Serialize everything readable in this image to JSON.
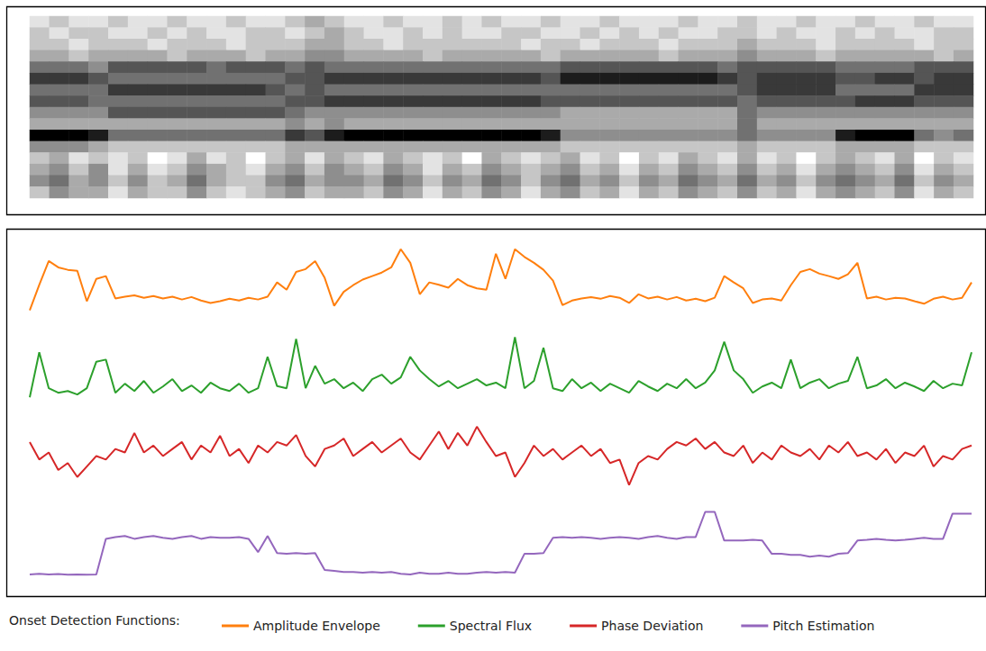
{
  "chart_data": [
    {
      "type": "heatmap",
      "color": "#000000",
      "zlim": [
        0,
        9
      ],
      "tick_labels": false,
      "cells": [
        [
          1,
          2,
          1,
          1,
          2,
          1,
          1,
          2,
          1,
          1,
          2,
          1,
          1,
          2,
          3,
          2,
          1,
          1,
          2,
          1,
          1,
          2,
          1,
          2,
          1,
          1,
          2,
          1,
          1,
          2,
          1,
          1,
          1,
          2,
          1,
          1,
          2,
          1,
          1,
          2,
          1,
          1,
          2,
          1,
          1,
          2,
          1,
          1
        ],
        [
          2,
          1,
          2,
          2,
          1,
          1,
          2,
          1,
          2,
          1,
          1,
          2,
          2,
          1,
          2,
          3,
          2,
          1,
          1,
          2,
          1,
          2,
          1,
          1,
          2,
          2,
          1,
          1,
          2,
          1,
          2,
          1,
          2,
          1,
          1,
          2,
          2,
          1,
          2,
          1,
          1,
          2,
          1,
          2,
          1,
          1,
          2,
          2
        ],
        [
          2,
          2,
          1,
          2,
          2,
          2,
          1,
          2,
          2,
          2,
          1,
          2,
          2,
          2,
          3,
          3,
          2,
          2,
          1,
          2,
          2,
          2,
          2,
          2,
          2,
          1,
          2,
          2,
          1,
          2,
          2,
          2,
          1,
          2,
          2,
          2,
          3,
          2,
          2,
          2,
          1,
          2,
          2,
          2,
          2,
          1,
          2,
          2
        ],
        [
          3,
          3,
          2,
          3,
          3,
          3,
          3,
          2,
          3,
          3,
          3,
          2,
          3,
          3,
          4,
          4,
          3,
          3,
          3,
          3,
          2,
          3,
          3,
          3,
          3,
          3,
          2,
          3,
          3,
          3,
          3,
          3,
          2,
          3,
          3,
          3,
          4,
          3,
          3,
          3,
          2,
          3,
          3,
          3,
          3,
          3,
          2,
          3
        ],
        [
          5,
          5,
          5,
          4,
          6,
          6,
          6,
          6,
          6,
          5,
          6,
          6,
          6,
          5,
          6,
          5,
          5,
          5,
          5,
          5,
          5,
          5,
          5,
          5,
          5,
          5,
          5,
          6,
          6,
          6,
          6,
          6,
          6,
          6,
          6,
          5,
          6,
          6,
          6,
          6,
          6,
          5,
          5,
          5,
          5,
          6,
          6,
          6
        ],
        [
          7,
          7,
          7,
          6,
          5,
          5,
          5,
          5,
          5,
          5,
          5,
          5,
          5,
          6,
          6,
          7,
          7,
          7,
          7,
          7,
          7,
          7,
          7,
          7,
          7,
          7,
          6,
          8,
          8,
          8,
          8,
          8,
          8,
          8,
          8,
          7,
          6,
          7,
          7,
          7,
          7,
          6,
          6,
          7,
          7,
          6,
          7,
          7
        ],
        [
          5,
          5,
          5,
          5,
          7,
          7,
          7,
          7,
          7,
          7,
          7,
          7,
          6,
          5,
          6,
          5,
          5,
          5,
          5,
          5,
          5,
          5,
          5,
          5,
          5,
          5,
          5,
          5,
          5,
          5,
          5,
          5,
          5,
          5,
          5,
          5,
          6,
          7,
          7,
          7,
          7,
          5,
          5,
          5,
          5,
          7,
          7,
          7
        ],
        [
          6,
          6,
          6,
          5,
          5,
          5,
          5,
          5,
          5,
          5,
          5,
          5,
          5,
          6,
          6,
          7,
          7,
          7,
          7,
          7,
          7,
          7,
          7,
          7,
          7,
          7,
          6,
          6,
          6,
          6,
          6,
          6,
          6,
          6,
          6,
          6,
          5,
          6,
          6,
          6,
          6,
          6,
          7,
          7,
          7,
          6,
          6,
          6
        ],
        [
          4,
          4,
          4,
          4,
          6,
          6,
          6,
          6,
          6,
          6,
          6,
          6,
          6,
          5,
          4,
          4,
          4,
          4,
          4,
          4,
          4,
          4,
          4,
          4,
          4,
          4,
          4,
          3,
          3,
          3,
          3,
          3,
          3,
          3,
          3,
          3,
          5,
          4,
          4,
          4,
          4,
          4,
          4,
          4,
          4,
          4,
          4,
          4
        ],
        [
          3,
          3,
          3,
          3,
          3,
          3,
          3,
          3,
          3,
          3,
          3,
          3,
          3,
          4,
          3,
          4,
          3,
          3,
          3,
          3,
          3,
          3,
          3,
          3,
          3,
          3,
          3,
          3,
          3,
          3,
          3,
          3,
          3,
          3,
          3,
          3,
          5,
          3,
          3,
          3,
          3,
          3,
          3,
          3,
          3,
          3,
          3,
          3
        ],
        [
          9,
          9,
          9,
          8,
          5,
          5,
          5,
          5,
          5,
          5,
          5,
          5,
          5,
          7,
          6,
          8,
          9,
          9,
          9,
          9,
          9,
          9,
          9,
          9,
          9,
          9,
          8,
          4,
          4,
          4,
          4,
          4,
          4,
          4,
          4,
          4,
          5,
          4,
          4,
          4,
          4,
          8,
          9,
          9,
          9,
          5,
          4,
          5
        ],
        [
          4,
          4,
          4,
          3,
          2,
          2,
          2,
          2,
          2,
          2,
          2,
          2,
          2,
          3,
          3,
          3,
          3,
          3,
          3,
          3,
          3,
          3,
          3,
          3,
          3,
          3,
          3,
          2,
          2,
          2,
          2,
          2,
          2,
          2,
          2,
          2,
          3,
          2,
          2,
          2,
          2,
          3,
          3,
          3,
          3,
          2,
          2,
          2
        ],
        [
          2,
          3,
          1,
          2,
          1,
          2,
          0,
          1,
          3,
          1,
          2,
          0,
          2,
          3,
          1,
          3,
          2,
          1,
          3,
          2,
          1,
          2,
          0,
          3,
          2,
          1,
          2,
          3,
          1,
          2,
          0,
          2,
          1,
          3,
          2,
          1,
          3,
          1,
          2,
          0,
          2,
          3,
          2,
          1,
          3,
          0,
          2,
          1
        ],
        [
          3,
          4,
          2,
          4,
          1,
          3,
          1,
          2,
          4,
          3,
          2,
          1,
          3,
          4,
          2,
          4,
          3,
          2,
          4,
          3,
          1,
          3,
          2,
          4,
          3,
          2,
          3,
          4,
          2,
          3,
          1,
          3,
          2,
          4,
          3,
          2,
          4,
          2,
          3,
          1,
          3,
          4,
          3,
          2,
          4,
          1,
          3,
          2
        ],
        [
          4,
          5,
          3,
          4,
          2,
          4,
          2,
          3,
          5,
          3,
          2,
          2,
          4,
          5,
          3,
          4,
          4,
          3,
          5,
          4,
          2,
          4,
          3,
          5,
          4,
          2,
          4,
          5,
          3,
          4,
          2,
          4,
          3,
          5,
          4,
          3,
          5,
          3,
          4,
          2,
          4,
          5,
          4,
          3,
          5,
          2,
          4,
          3
        ],
        [
          2,
          4,
          3,
          3,
          1,
          3,
          2,
          2,
          4,
          2,
          1,
          2,
          3,
          4,
          2,
          3,
          3,
          2,
          4,
          3,
          1,
          3,
          2,
          4,
          3,
          1,
          3,
          4,
          2,
          3,
          1,
          3,
          2,
          4,
          3,
          2,
          4,
          2,
          3,
          1,
          3,
          4,
          3,
          2,
          4,
          1,
          3,
          2
        ]
      ]
    },
    {
      "type": "line",
      "tick_labels": false,
      "grid": false,
      "marker": "none",
      "legend": "bottom",
      "legend_title": "Onset Detection Functions:",
      "xlim": [
        0,
        99
      ],
      "ylim": [
        0,
        100
      ],
      "x": [
        0,
        1,
        2,
        3,
        4,
        5,
        6,
        7,
        8,
        9,
        10,
        11,
        12,
        13,
        14,
        15,
        16,
        17,
        18,
        19,
        20,
        21,
        22,
        23,
        24,
        25,
        26,
        27,
        28,
        29,
        30,
        31,
        32,
        33,
        34,
        35,
        36,
        37,
        38,
        39,
        40,
        41,
        42,
        43,
        44,
        45,
        46,
        47,
        48,
        49,
        50,
        51,
        52,
        53,
        54,
        55,
        56,
        57,
        58,
        59,
        60,
        61,
        62,
        63,
        64,
        65,
        66,
        67,
        68,
        69,
        70,
        71,
        72,
        73,
        74,
        75,
        76,
        77,
        78,
        79,
        80,
        81,
        82,
        83,
        84,
        85,
        86,
        87,
        88,
        89,
        90,
        91,
        92,
        93,
        94,
        95,
        96,
        97,
        98,
        99
      ],
      "series": [
        {
          "name": "Amplitude Envelope",
          "color": "#ff7f0e",
          "values": [
            78.7,
            86,
            92.8,
            91,
            90.3,
            90,
            81.3,
            87.7,
            88.5,
            82.1,
            82.6,
            83,
            82.3,
            82.8,
            82.1,
            82.6,
            81.8,
            82.5,
            81.5,
            80.8,
            81.3,
            82,
            81.5,
            82.3,
            81.8,
            82.6,
            86.7,
            84.6,
            89.7,
            90.5,
            92.8,
            88,
            80,
            84,
            85.9,
            87.5,
            88.5,
            89.5,
            91,
            96.2,
            92.3,
            83.3,
            86.7,
            86,
            85.2,
            87.7,
            85.9,
            85,
            84.6,
            94.9,
            87.7,
            96.2,
            94,
            92.3,
            90.3,
            87.2,
            80.2,
            81.5,
            82.1,
            82.5,
            82,
            82.8,
            82.3,
            80.8,
            83.3,
            82.1,
            82.6,
            81.8,
            82.5,
            81.5,
            82,
            81.3,
            82.3,
            88.5,
            86.7,
            85,
            80.8,
            81.8,
            82.1,
            81.5,
            85.9,
            89.7,
            90.5,
            89.2,
            88.5,
            87.7,
            89,
            92.3,
            82.1,
            82.6,
            81.8,
            82.3,
            82.1,
            81.3,
            80.6,
            82,
            82.6,
            81.8,
            82.3,
            86.7
          ]
        },
        {
          "name": "Spectral Flux",
          "color": "#2ca02c",
          "values": [
            53.8,
            66.7,
            56.4,
            55.1,
            55.6,
            54.6,
            56.4,
            64,
            64.6,
            55.1,
            57.7,
            55.6,
            58.5,
            55.1,
            56.9,
            59,
            55.6,
            57.2,
            55.1,
            58,
            56.4,
            55.6,
            57.7,
            55.1,
            56.4,
            65.4,
            57,
            56.4,
            70.5,
            56.4,
            62.8,
            57.7,
            59,
            56.4,
            58,
            55.6,
            59,
            60.3,
            57.7,
            59.5,
            65.4,
            61.5,
            59,
            56.9,
            58.5,
            56.4,
            57.7,
            59,
            57.2,
            58,
            56.4,
            71,
            56.4,
            58.5,
            68,
            56.4,
            55.6,
            59,
            56.4,
            58,
            55.6,
            57.7,
            56.4,
            55.1,
            58.5,
            56.9,
            55.6,
            57.7,
            56.4,
            59,
            56.4,
            58,
            61.5,
            69.7,
            61.5,
            59,
            55.1,
            56.9,
            58,
            56.4,
            64.6,
            56.4,
            58,
            59,
            56.4,
            57.7,
            58.5,
            65.4,
            56.4,
            57.2,
            59,
            56.4,
            58,
            56.9,
            55.6,
            58.5,
            56.4,
            57.7,
            57.2,
            66.7
          ]
        },
        {
          "name": "Phase Deviation",
          "color": "#d62728",
          "values": [
            41,
            36,
            38,
            33,
            35,
            31,
            34,
            37,
            36,
            39,
            38,
            43.6,
            38,
            40,
            37,
            39,
            41,
            36,
            40,
            38,
            42.8,
            37,
            39,
            35,
            40,
            38,
            41,
            40,
            43,
            37,
            34,
            39,
            40,
            42,
            37,
            39,
            41,
            38,
            40,
            42,
            38,
            36,
            40,
            44,
            39,
            43.6,
            40,
            45.4,
            41,
            37,
            38,
            31,
            35,
            40,
            37,
            39,
            36,
            38,
            40,
            37,
            39,
            35,
            36,
            28.7,
            35,
            37,
            36,
            39,
            41,
            40,
            42,
            39,
            41,
            38,
            37,
            40,
            35,
            38,
            36,
            40,
            38,
            37,
            39,
            36,
            40,
            38,
            41,
            37,
            38,
            36,
            39,
            35,
            38,
            37,
            40,
            34,
            37,
            36,
            39,
            40
          ]
        },
        {
          "name": "Pitch Estimation",
          "color": "#9467bd",
          "values": [
            3.1,
            3.3,
            3.1,
            3.2,
            3,
            3.1,
            3,
            3.1,
            13.3,
            13.8,
            14.1,
            13.3,
            13.8,
            14.1,
            13.6,
            13.3,
            13.8,
            14.1,
            13.3,
            13.8,
            13.6,
            13.6,
            13.8,
            13.3,
            9.5,
            14.1,
            9.2,
            9,
            9.2,
            9,
            9.2,
            4.4,
            4.1,
            3.8,
            3.8,
            3.6,
            3.8,
            3.6,
            3.8,
            3.3,
            3.1,
            3.6,
            3.3,
            3.3,
            3.6,
            3.3,
            3.3,
            3.6,
            3.8,
            3.6,
            3.8,
            3.6,
            9,
            9,
            9.2,
            13.6,
            13.8,
            13.6,
            13.8,
            13.6,
            13.3,
            13.6,
            13.8,
            13.6,
            13.3,
            13.8,
            14.1,
            13.6,
            13.3,
            13.8,
            13.8,
            21,
            21,
            12.8,
            12.8,
            12.8,
            13,
            12.8,
            9,
            9,
            8.7,
            8.7,
            8.2,
            8.5,
            8.2,
            9,
            9.2,
            12.8,
            13,
            13.3,
            13,
            12.8,
            13,
            13.3,
            13.6,
            13.3,
            13.3,
            20.5,
            20.5,
            20.5
          ]
        }
      ]
    }
  ]
}
